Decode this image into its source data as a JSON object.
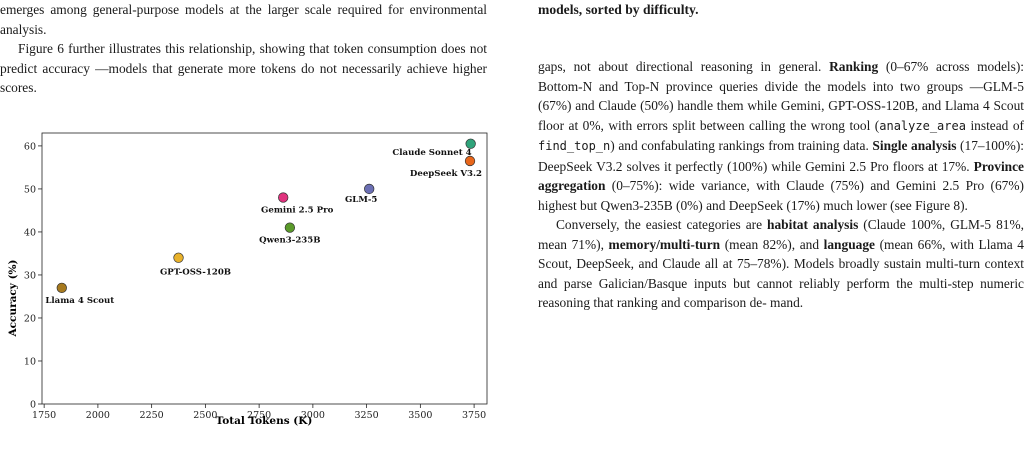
{
  "left_text": {
    "p1": "emerges among general-purpose models at the larger scale required for environmental analysis.",
    "p2": "Figure 6 further illustrates this relationship, showing that token consumption does not predict accuracy —models that generate more tokens do not necessarily achieve higher scores."
  },
  "right_text": {
    "caption_tail": "models, sorted by difficulty.",
    "p1_a": "gaps, not about directional reasoning in general. ",
    "p1_ranking_label": "Ranking",
    "p1_b": " (0–67% across models): Bottom-N and Top-N province queries divide the models into two groups —GLM-5 (67%) and Claude (50%) handle them while Gemini, GPT-OSS-120B, and Llama 4 Scout floor at 0%, with errors split between calling the wrong tool (",
    "p1_code1": "analyze_area",
    "p1_c": " instead of ",
    "p1_code2": "find_top_n",
    "p1_d": ") and confabulating rankings from training data. ",
    "p1_single_label": "Single analysis",
    "p1_e": " (17–100%): DeepSeek V3.2 solves it perfectly (100%) while Gemini 2.5 Pro floors at 17%. ",
    "p1_province_label": "Province aggregation",
    "p1_f": " (0–75%): wide variance, with Claude (75%) and Gemini 2.5 Pro (67%) highest but Qwen3-235B (0%) and DeepSeek (17%) much lower (see Figure 8).",
    "p2_a": "Conversely, the easiest categories are ",
    "p2_habitat_label": "habitat analysis",
    "p2_b": " (Claude 100%, GLM-5 81%, mean 71%), ",
    "p2_memory_label": "memory/multi-turn",
    "p2_c": " (mean 82%), and ",
    "p2_language_label": "language",
    "p2_d": " (mean 66%, with Llama 4 Scout, DeepSeek, and Claude all at 75–78%). Models broadly sustain multi-turn context and parse Galician/Basque inputs but cannot reliably perform the multi-step numeric reasoning that ranking and comparison de-",
    "p2_e": "mand."
  },
  "chart_data": {
    "type": "scatter",
    "xlabel": "Total Tokens (K)",
    "ylabel": "Accuracy (%)",
    "xlim": [
      1740,
      3810
    ],
    "ylim": [
      0,
      63
    ],
    "xticks": [
      1750,
      2000,
      2250,
      2500,
      2750,
      3000,
      3250,
      3500,
      3750
    ],
    "yticks": [
      0,
      10,
      20,
      30,
      40,
      50,
      60
    ],
    "grid": false,
    "points": [
      {
        "label": "Llama 4 Scout",
        "x": 1832,
        "y": 27,
        "color": "#a77a1e"
      },
      {
        "label": "GPT-OSS-120B",
        "x": 2375,
        "y": 34,
        "color": "#e8b12a"
      },
      {
        "label": "Gemini 2.5 Pro",
        "x": 2862,
        "y": 48,
        "color": "#e0337e"
      },
      {
        "label": "Qwen3-235B",
        "x": 2893,
        "y": 41,
        "color": "#5a9a2a"
      },
      {
        "label": "GLM-5",
        "x": 3262,
        "y": 50,
        "color": "#6b6fb4"
      },
      {
        "label": "Claude Sonnet 4",
        "x": 3734,
        "y": 60.5,
        "color": "#2fa37a"
      },
      {
        "label": "DeepSeek V3.2",
        "x": 3731,
        "y": 56.5,
        "color": "#e8661a"
      }
    ]
  }
}
